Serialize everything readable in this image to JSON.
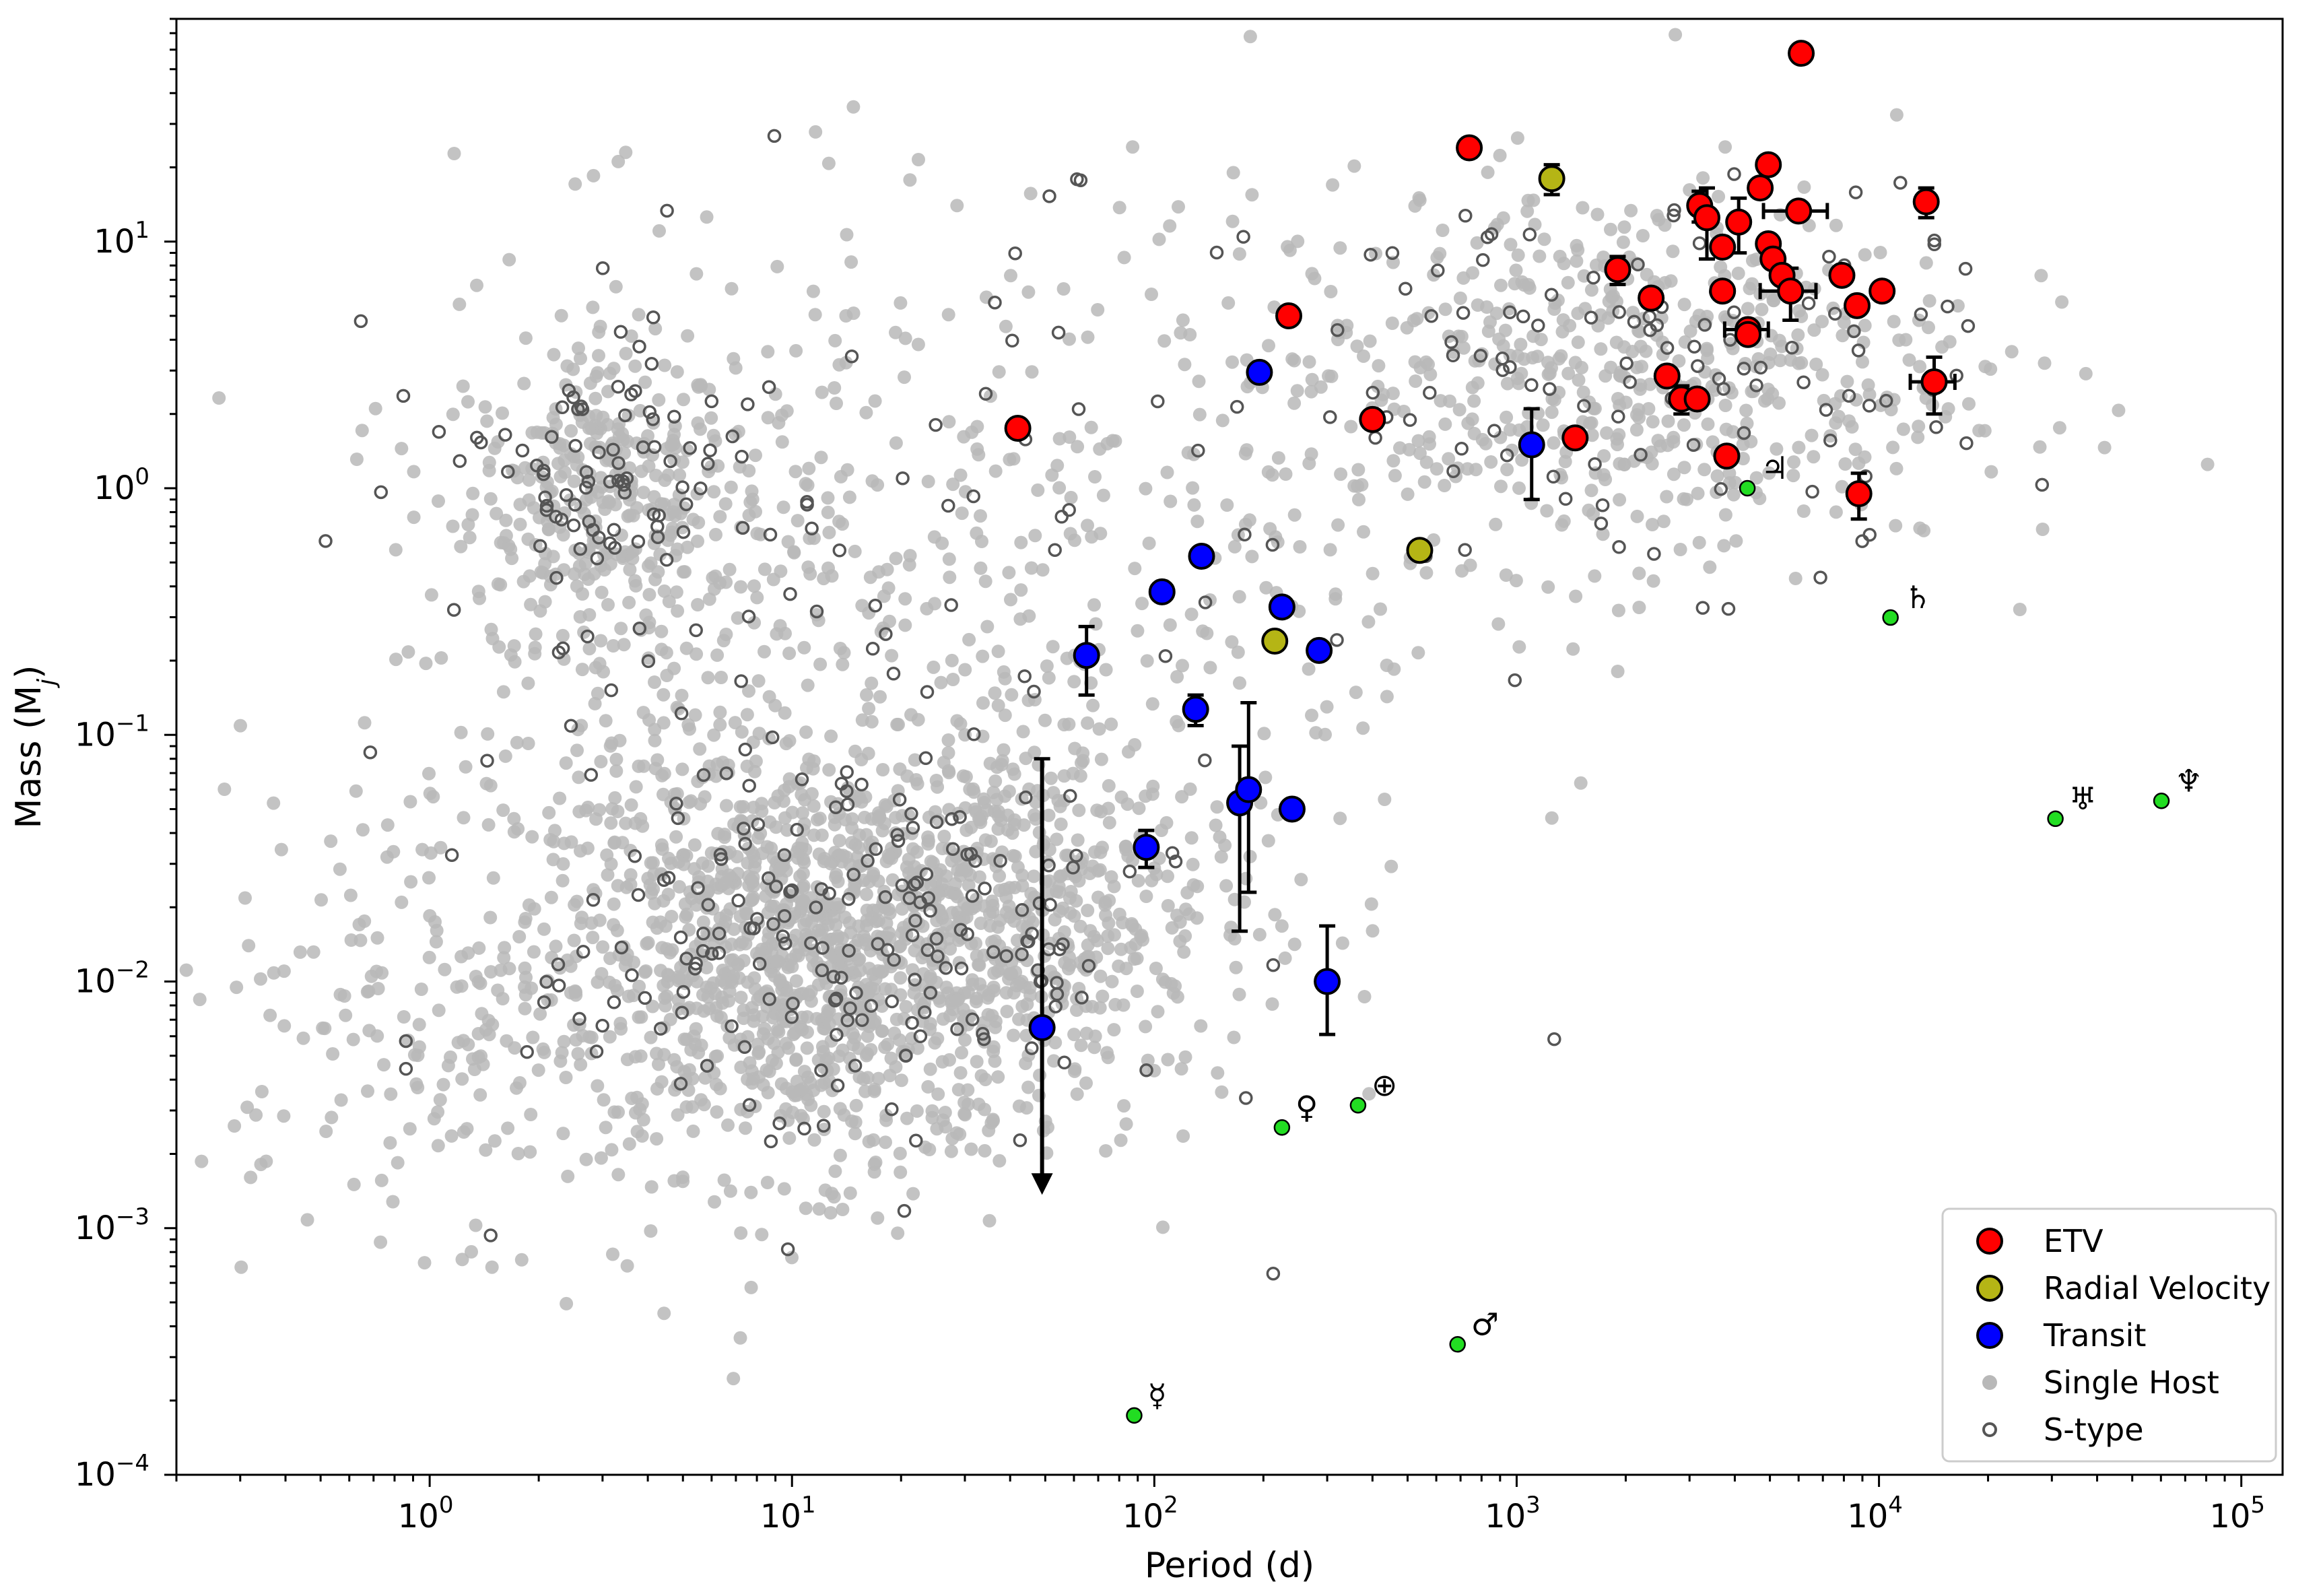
{
  "chart_data": {
    "type": "scatter",
    "title": "",
    "xlabel": "Period (d)",
    "ylabel": "Mass (M",
    "ylabel_sub": "j",
    "ylabel_close": ")",
    "xscale": "log",
    "yscale": "log",
    "xlim": [
      0.2,
      130000
    ],
    "ylim": [
      0.0001,
      80
    ],
    "x_ticks": [
      {
        "base": "10",
        "exp": "0",
        "value": 1
      },
      {
        "base": "10",
        "exp": "1",
        "value": 10
      },
      {
        "base": "10",
        "exp": "2",
        "value": 100
      },
      {
        "base": "10",
        "exp": "3",
        "value": 1000
      },
      {
        "base": "10",
        "exp": "4",
        "value": 10000
      },
      {
        "base": "10",
        "exp": "5",
        "value": 100000
      }
    ],
    "y_ticks": [
      {
        "base": "10",
        "exp": "−4",
        "value": 0.0001
      },
      {
        "base": "10",
        "exp": "−3",
        "value": 0.001
      },
      {
        "base": "10",
        "exp": "−2",
        "value": 0.01
      },
      {
        "base": "10",
        "exp": "−1",
        "value": 0.1
      },
      {
        "base": "10",
        "exp": "0",
        "value": 1
      },
      {
        "base": "10",
        "exp": "1",
        "value": 10
      }
    ],
    "legend": {
      "placement": "lower-right",
      "entries": [
        {
          "label": "ETV",
          "marker": "filled-circle",
          "color": "#ff0000"
        },
        {
          "label": "Radial Velocity",
          "marker": "filled-circle",
          "color": "#b5b515"
        },
        {
          "label": "Transit",
          "marker": "filled-circle",
          "color": "#0000ff"
        },
        {
          "label": "Single Host",
          "marker": "small-dot",
          "color": "#b8b8b8"
        },
        {
          "label": "S-type",
          "marker": "open-circle",
          "color": "#555555"
        }
      ]
    },
    "colors": {
      "etv": "#ff0000",
      "rv": "#b5b515",
      "transit": "#0000ff",
      "single_host": "#b8b8b8",
      "s_type": "#555555",
      "solar_system": "#22dd22"
    },
    "series": [
      {
        "name": "ETV",
        "points": [
          {
            "x": 42,
            "y": 1.75
          },
          {
            "x": 235,
            "y": 5.0
          },
          {
            "x": 400,
            "y": 1.9
          },
          {
            "x": 740,
            "y": 24,
            "yerr": [
              2,
              2
            ]
          },
          {
            "x": 1450,
            "y": 1.6
          },
          {
            "x": 1900,
            "y": 7.7,
            "yerr": [
              1.0,
              1.0
            ]
          },
          {
            "x": 2350,
            "y": 5.9
          },
          {
            "x": 2600,
            "y": 2.85
          },
          {
            "x": 2850,
            "y": 2.3,
            "yerr": [
              0.3,
              0.3
            ]
          },
          {
            "x": 3150,
            "y": 2.3
          },
          {
            "x": 3200,
            "y": 14,
            "yerr": [
              2,
              2
            ]
          },
          {
            "x": 3350,
            "y": 12.5,
            "yerr": [
              4,
              4
            ]
          },
          {
            "x": 3700,
            "y": 9.5
          },
          {
            "x": 3700,
            "y": 6.3
          },
          {
            "x": 3800,
            "y": 1.35
          },
          {
            "x": 4100,
            "y": 12,
            "yerr": [
              3,
              3
            ]
          },
          {
            "x": 4350,
            "y": 4.4,
            "xerr": [
              600,
              600
            ]
          },
          {
            "x": 4350,
            "y": 4.2
          },
          {
            "x": 4700,
            "y": 16.5
          },
          {
            "x": 4950,
            "y": 20.5
          },
          {
            "x": 4950,
            "y": 9.8
          },
          {
            "x": 5100,
            "y": 8.5
          },
          {
            "x": 5400,
            "y": 7.3
          },
          {
            "x": 5700,
            "y": 6.3,
            "xerr": [
              1000,
              1000
            ],
            "yerr": [
              1.5,
              1.5
            ]
          },
          {
            "x": 6000,
            "y": 13.3,
            "xerr": [
              1200,
              1200
            ]
          },
          {
            "x": 6100,
            "y": 58
          },
          {
            "x": 7900,
            "y": 7.3
          },
          {
            "x": 8700,
            "y": 5.5
          },
          {
            "x": 8800,
            "y": 0.95,
            "yerr": [
              0.2,
              0.2
            ]
          },
          {
            "x": 10200,
            "y": 6.3
          },
          {
            "x": 13500,
            "y": 14.5,
            "yerr": [
              2,
              2
            ]
          },
          {
            "x": 14200,
            "y": 2.7,
            "xerr": [
              2000,
              2000
            ],
            "yerr": [
              0.7,
              0.7
            ]
          }
        ]
      },
      {
        "name": "Radial Velocity",
        "points": [
          {
            "x": 215,
            "y": 0.24
          },
          {
            "x": 540,
            "y": 0.56
          },
          {
            "x": 1250,
            "y": 18,
            "yerr": [
              2.5,
              2.5
            ]
          }
        ]
      },
      {
        "name": "Transit",
        "points": [
          {
            "x": 49,
            "y": 0.0065,
            "upper_limit": 0.08,
            "arrow_to": 0.0014
          },
          {
            "x": 65,
            "y": 0.21,
            "yerr": [
              0.065,
              0.065
            ]
          },
          {
            "x": 95,
            "y": 0.035,
            "yerr": [
              0.006,
              0.006
            ]
          },
          {
            "x": 105,
            "y": 0.38
          },
          {
            "x": 130,
            "y": 0.127,
            "yerr": [
              0.018,
              0.018
            ]
          },
          {
            "x": 135,
            "y": 0.53
          },
          {
            "x": 172,
            "y": 0.053,
            "yerr": [
              0.037,
              0.037
            ]
          },
          {
            "x": 182,
            "y": 0.06,
            "yerr": [
              0.037,
              0.075
            ]
          },
          {
            "x": 195,
            "y": 2.95
          },
          {
            "x": 225,
            "y": 0.33
          },
          {
            "x": 240,
            "y": 0.05
          },
          {
            "x": 285,
            "y": 0.22
          },
          {
            "x": 300,
            "y": 0.01,
            "yerr": [
              0.0039,
              0.0068
            ]
          },
          {
            "x": 1100,
            "y": 1.5,
            "yerr": [
              0.6,
              0.6
            ]
          }
        ]
      }
    ],
    "solar_system": [
      {
        "name": "Mercury",
        "symbol": "☿",
        "x": 88,
        "y": 0.000174
      },
      {
        "name": "Venus",
        "symbol": "♀",
        "x": 225,
        "y": 0.00256
      },
      {
        "name": "Earth",
        "symbol": "⊕",
        "x": 365,
        "y": 0.00315
      },
      {
        "name": "Mars",
        "symbol": "♂",
        "x": 687,
        "y": 0.000338
      },
      {
        "name": "Jupiter",
        "symbol": "♃",
        "x": 4333,
        "y": 1.0
      },
      {
        "name": "Saturn",
        "symbol": "♄",
        "x": 10759,
        "y": 0.299
      },
      {
        "name": "Uranus",
        "symbol": "♅",
        "x": 30687,
        "y": 0.0457
      },
      {
        "name": "Neptune",
        "symbol": "♆",
        "x": 60190,
        "y": 0.054
      }
    ],
    "background_clusters_note": "Single Host (grey dots) and S-type (open grey circles) form dense clouds: a hot-Jupiter clump near P≈3 d, M≈1 Mj; a dense sub-Neptune cloud at P≈3–100 d, M≈0.003–0.1 Mj; a giant-planet band at P≈300–30000 d, M≈0.5–30 Mj.",
    "background_clusters": [
      {
        "series": "single_host",
        "cx": 3,
        "cy": 1.0,
        "sx": 0.18,
        "sy": 0.28,
        "n": 260
      },
      {
        "series": "single_host",
        "cx": 12,
        "cy": 0.012,
        "sx": 0.42,
        "sy": 0.42,
        "n": 1200
      },
      {
        "series": "single_host",
        "cx": 40,
        "cy": 0.02,
        "sx": 0.35,
        "sy": 0.35,
        "n": 350
      },
      {
        "series": "single_host",
        "cx": 1800,
        "cy": 3,
        "sx": 0.5,
        "sy": 0.38,
        "n": 550
      },
      {
        "series": "single_host",
        "cx": 30,
        "cy": 0.5,
        "sx": 0.7,
        "sy": 0.75,
        "n": 420
      },
      {
        "series": "single_host",
        "cx": 5,
        "cy": 0.1,
        "sx": 0.45,
        "sy": 0.9,
        "n": 220
      },
      {
        "series": "single_host",
        "cx": 1,
        "cy": 0.008,
        "sx": 0.35,
        "sy": 0.45,
        "n": 150
      },
      {
        "series": "s_type",
        "cx": 3,
        "cy": 1.0,
        "sx": 0.17,
        "sy": 0.25,
        "n": 75
      },
      {
        "series": "s_type",
        "cx": 15,
        "cy": 0.015,
        "sx": 0.45,
        "sy": 0.45,
        "n": 200
      },
      {
        "series": "s_type",
        "cx": 2000,
        "cy": 3,
        "sx": 0.5,
        "sy": 0.4,
        "n": 110
      },
      {
        "series": "s_type",
        "cx": 20,
        "cy": 0.5,
        "sx": 0.7,
        "sy": 0.7,
        "n": 70
      }
    ]
  }
}
